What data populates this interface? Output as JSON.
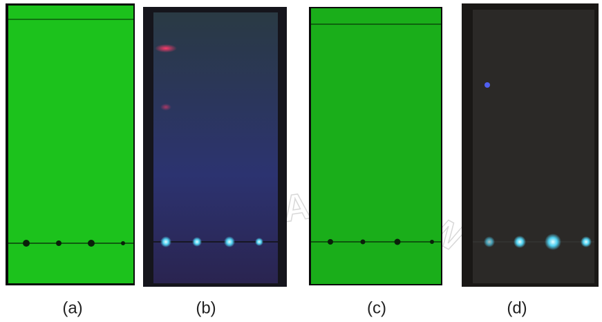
{
  "panels": [
    {
      "label": "(a)"
    },
    {
      "label": "(b)"
    },
    {
      "label": "(c)"
    },
    {
      "label": "(d)"
    }
  ],
  "watermark": "RSITAS BRAW"
}
